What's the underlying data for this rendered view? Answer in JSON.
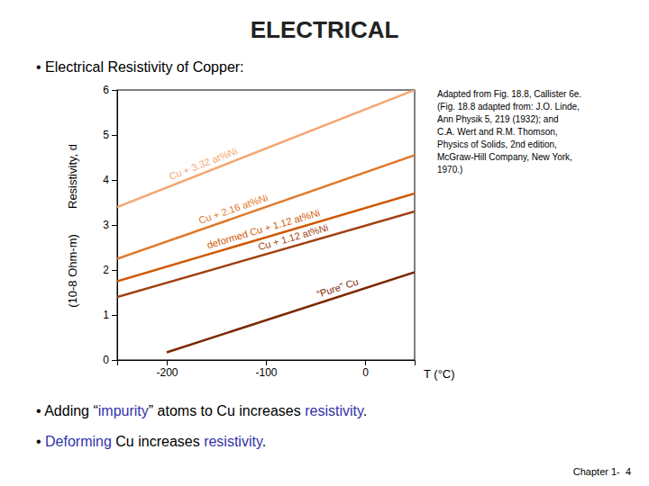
{
  "chart_data": {
    "type": "line",
    "title": "ELECTRICAL",
    "subtitle": "• Electrical Resistivity of Copper:",
    "xlabel": "T (°C)",
    "ylabel": [
      "Resistivity, d",
      "(10-8 Ohm-m)"
    ],
    "xlim": [
      -250,
      50
    ],
    "ylim": [
      0,
      6
    ],
    "xticks": [
      -200,
      -100,
      0
    ],
    "yticks": [
      0,
      1,
      2,
      3,
      4,
      5,
      6
    ],
    "grid": false,
    "series": [
      {
        "name": "Cu + 3.32 at%Ni",
        "color": "#F5A672",
        "x": [
          -250,
          50
        ],
        "values": [
          3.4,
          6.0
        ]
      },
      {
        "name": "Cu + 2.16 at%Ni",
        "color": "#E07828",
        "x": [
          -250,
          50
        ],
        "values": [
          2.25,
          4.55
        ]
      },
      {
        "name": "deformed Cu + 1.12 at%Ni",
        "color": "#D05800",
        "x": [
          -250,
          50
        ],
        "values": [
          1.75,
          3.7
        ]
      },
      {
        "name": "Cu + 1.12 at%Ni",
        "color": "#A04010",
        "x": [
          -250,
          50
        ],
        "values": [
          1.4,
          3.3
        ]
      },
      {
        "name": "“Pure” Cu",
        "color": "#7B2800",
        "x": [
          -200,
          50
        ],
        "values": [
          0.17,
          1.95
        ]
      }
    ],
    "annotation": [
      "Adapted from Fig. 18.8, Callister 6e.",
      "(Fig. 18.8 adapted from: J.O. Linde,",
      "Ann Physik 5, 219 (1932); and",
      "C.A. Wert and R.M. Thomson,",
      "Physics of Solids, 2nd edition,",
      "McGraw-Hill Company, New York,",
      "1970.)"
    ],
    "bullets": [
      [
        {
          "text": "• Adding “"
        },
        {
          "text": "impurity",
          "color": "#3333AA"
        },
        {
          "text": "” atoms to Cu increases "
        },
        {
          "text": "resistivity",
          "color": "#3333AA"
        },
        {
          "text": "."
        }
      ],
      [
        {
          "text": "• "
        },
        {
          "text": "Deforming",
          "color": "#3333AA"
        },
        {
          "text": " Cu increases "
        },
        {
          "text": "resistivity",
          "color": "#3333AA"
        },
        {
          "text": "."
        }
      ]
    ],
    "footer": "Chapter 1-  4"
  }
}
